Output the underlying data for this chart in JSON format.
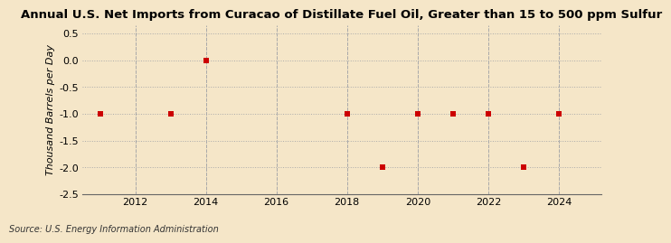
{
  "title": "Annual U.S. Net Imports from Curacao of Distillate Fuel Oil, Greater than 15 to 500 ppm Sulfur",
  "ylabel": "Thousand Barrels per Day",
  "source": "Source: U.S. Energy Information Administration",
  "background_color": "#f5e6c8",
  "plot_bg_color": "#f5e6c8",
  "x_values": [
    2011,
    2013,
    2014,
    2018,
    2019,
    2020,
    2021,
    2022,
    2023,
    2024
  ],
  "y_values": [
    -1.0,
    -1.0,
    0.0,
    -1.0,
    -2.0,
    -1.0,
    -1.0,
    -1.0,
    -2.0,
    -1.0
  ],
  "marker_color": "#cc0000",
  "marker_size": 5,
  "xlim": [
    2010.5,
    2025.2
  ],
  "ylim": [
    -2.5,
    0.65
  ],
  "xticks": [
    2012,
    2014,
    2016,
    2018,
    2020,
    2022,
    2024
  ],
  "yticks": [
    0.5,
    0.0,
    -0.5,
    -1.0,
    -1.5,
    -2.0,
    -2.5
  ],
  "grid_color": "#aaaaaa",
  "title_fontsize": 9.5,
  "axis_fontsize": 8,
  "tick_fontsize": 8,
  "source_fontsize": 7
}
